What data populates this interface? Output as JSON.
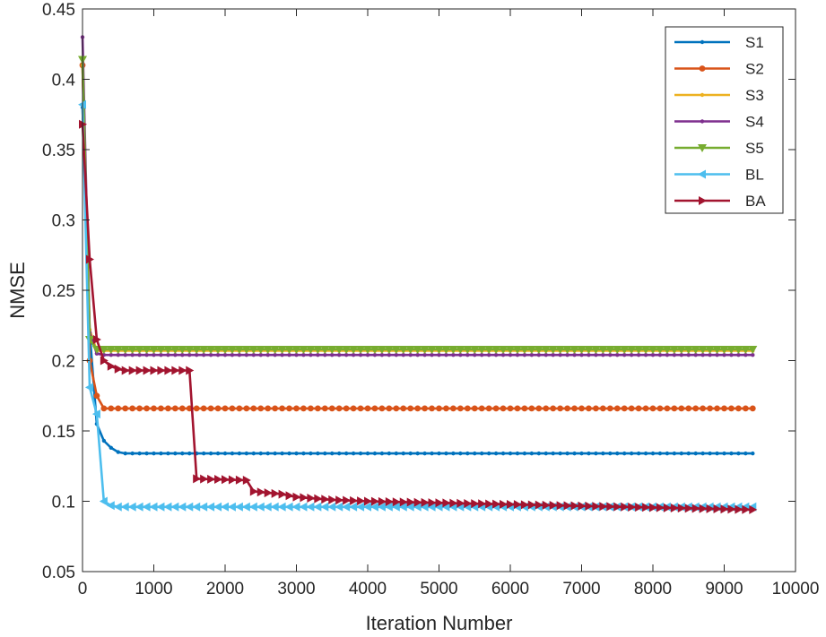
{
  "chart_data": {
    "type": "line",
    "xlabel": "Iteration Number",
    "ylabel": "NMSE",
    "xlim": [
      0,
      10000
    ],
    "ylim": [
      0.05,
      0.45
    ],
    "xticks": [
      0,
      1000,
      2000,
      3000,
      4000,
      5000,
      6000,
      7000,
      8000,
      9000,
      10000
    ],
    "yticks": [
      0.05,
      0.1,
      0.15,
      0.2,
      0.25,
      0.3,
      0.35,
      0.4,
      0.45
    ],
    "xtick_labels": [
      "0",
      "1000",
      "2000",
      "3000",
      "4000",
      "5000",
      "6000",
      "7000",
      "8000",
      "9000",
      "10000"
    ],
    "ytick_labels": [
      "0.05",
      "0.1",
      "0.15",
      "0.2",
      "0.25",
      "0.3",
      "0.35",
      "0.4",
      "0.45"
    ],
    "grid": false,
    "legend_position": "top-right",
    "series": [
      {
        "name": "S1",
        "color": "#0072BD",
        "marker": "dot",
        "x": [
          0,
          100,
          200,
          300,
          400,
          500,
          600,
          9400
        ],
        "y": [
          0.38,
          0.22,
          0.155,
          0.143,
          0.138,
          0.135,
          0.134,
          0.134
        ]
      },
      {
        "name": "S2",
        "color": "#D95319",
        "marker": "circle",
        "x": [
          0,
          100,
          200,
          300,
          9400
        ],
        "y": [
          0.41,
          0.2,
          0.175,
          0.166,
          0.166
        ]
      },
      {
        "name": "S3",
        "color": "#EDB120",
        "marker": "dot",
        "x": [
          0,
          100,
          200,
          9400
        ],
        "y": [
          0.41,
          0.222,
          0.207,
          0.207
        ]
      },
      {
        "name": "S4",
        "color": "#7E2F8E",
        "marker": "dot",
        "x": [
          0,
          100,
          200,
          300,
          9400
        ],
        "y": [
          0.43,
          0.22,
          0.205,
          0.204,
          0.204
        ]
      },
      {
        "name": "S5",
        "color": "#77AC30",
        "marker": "triangle-down",
        "x": [
          0,
          100,
          200,
          9400
        ],
        "y": [
          0.414,
          0.215,
          0.208,
          0.208
        ]
      },
      {
        "name": "BL",
        "color": "#4DBEEE",
        "marker": "triangle-left",
        "x": [
          0,
          100,
          200,
          300,
          400,
          500,
          9400
        ],
        "y": [
          0.382,
          0.181,
          0.162,
          0.1,
          0.097,
          0.096,
          0.096
        ]
      },
      {
        "name": "BA",
        "color": "#A2142F",
        "marker": "triangle-right",
        "x": [
          0,
          100,
          200,
          300,
          400,
          500,
          600,
          1500,
          1600,
          2300,
          2400,
          2800,
          3000,
          3500,
          4000,
          9400
        ],
        "y": [
          0.368,
          0.272,
          0.215,
          0.2,
          0.196,
          0.194,
          0.193,
          0.193,
          0.116,
          0.115,
          0.107,
          0.105,
          0.103,
          0.101,
          0.1,
          0.094
        ]
      }
    ]
  }
}
